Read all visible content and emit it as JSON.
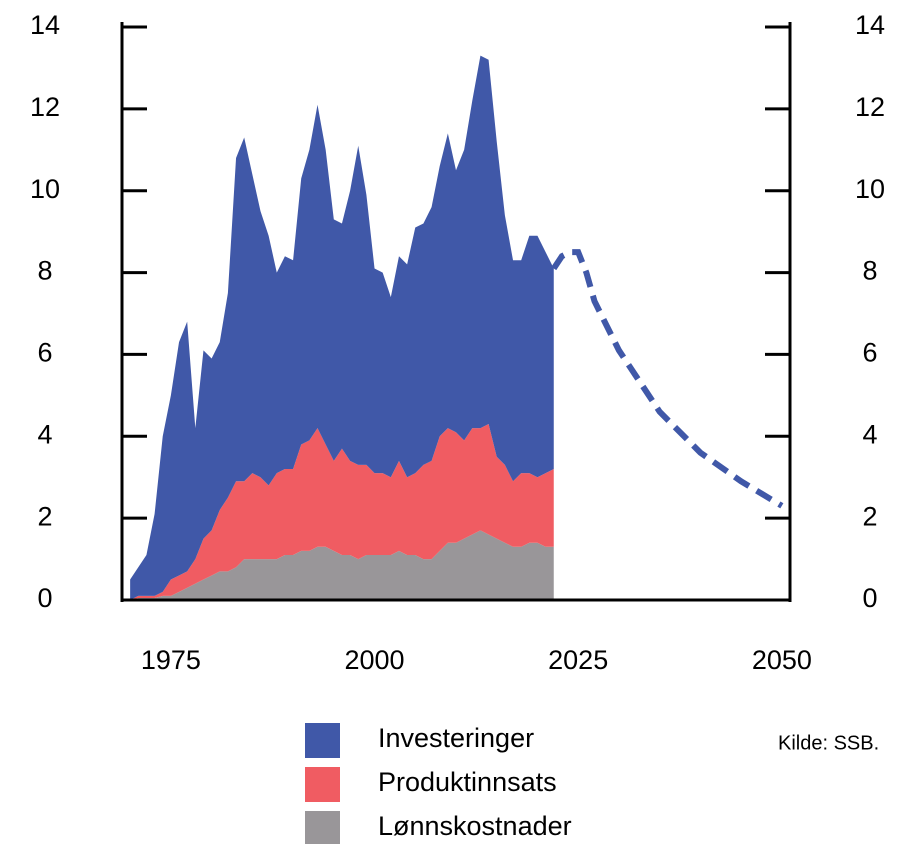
{
  "chart_data": {
    "type": "stacked_area",
    "x": [
      1970,
      1971,
      1972,
      1973,
      1974,
      1975,
      1976,
      1977,
      1978,
      1979,
      1980,
      1981,
      1982,
      1983,
      1984,
      1985,
      1986,
      1987,
      1988,
      1989,
      1990,
      1991,
      1992,
      1993,
      1994,
      1995,
      1996,
      1997,
      1998,
      1999,
      2000,
      2001,
      2002,
      2003,
      2004,
      2005,
      2006,
      2007,
      2008,
      2009,
      2010,
      2011,
      2012,
      2013,
      2014,
      2015,
      2016,
      2017,
      2018,
      2019,
      2020,
      2021,
      2022
    ],
    "series": [
      {
        "name": "Lønnskostnader",
        "color": "#999699",
        "values": [
          0,
          0.05,
          0.05,
          0.05,
          0.1,
          0.1,
          0.2,
          0.3,
          0.4,
          0.5,
          0.6,
          0.7,
          0.7,
          0.8,
          1.0,
          1.0,
          1.0,
          1.0,
          1.0,
          1.1,
          1.1,
          1.2,
          1.2,
          1.3,
          1.3,
          1.2,
          1.1,
          1.1,
          1.0,
          1.1,
          1.1,
          1.1,
          1.1,
          1.2,
          1.1,
          1.1,
          1.0,
          1.0,
          1.2,
          1.4,
          1.4,
          1.5,
          1.6,
          1.7,
          1.6,
          1.5,
          1.4,
          1.3,
          1.3,
          1.4,
          1.4,
          1.3,
          1.3
        ]
      },
      {
        "name": "Produktinnsats",
        "color": "#f05c62",
        "values": [
          0,
          0.05,
          0.05,
          0.05,
          0.1,
          0.4,
          0.4,
          0.4,
          0.6,
          1.0,
          1.1,
          1.5,
          1.8,
          2.1,
          1.9,
          2.1,
          2.0,
          1.8,
          2.1,
          2.1,
          2.1,
          2.6,
          2.7,
          2.9,
          2.5,
          2.2,
          2.6,
          2.3,
          2.3,
          2.2,
          2.0,
          2.0,
          1.9,
          2.2,
          1.9,
          2.0,
          2.3,
          2.4,
          2.8,
          2.8,
          2.7,
          2.4,
          2.6,
          2.5,
          2.7,
          2.0,
          1.9,
          1.6,
          1.8,
          1.7,
          1.6,
          1.8,
          1.9
        ]
      },
      {
        "name": "Investeringer",
        "color": "#4058a8",
        "values": [
          0.5,
          0.7,
          1.0,
          2.0,
          3.8,
          4.5,
          5.7,
          6.1,
          3.2,
          4.6,
          4.2,
          4.1,
          5.0,
          7.9,
          8.4,
          7.3,
          6.5,
          6.1,
          4.9,
          5.2,
          5.1,
          6.5,
          7.1,
          7.9,
          7.2,
          5.9,
          5.5,
          6.6,
          7.8,
          6.6,
          5.0,
          4.9,
          4.4,
          5.0,
          5.2,
          6.0,
          5.9,
          6.2,
          6.6,
          7.2,
          6.4,
          7.1,
          8.0,
          9.1,
          8.9,
          7.7,
          6.1,
          5.4,
          5.2,
          5.8,
          5.9,
          5.4,
          4.9
        ]
      }
    ],
    "projection": {
      "color": "#4058a8",
      "line_style": "dashed",
      "x": [
        2022,
        2023,
        2024,
        2025,
        2026,
        2027,
        2028,
        2030,
        2035,
        2040,
        2045,
        2050
      ],
      "values": [
        8.1,
        8.4,
        8.5,
        8.5,
        8.0,
        7.3,
        6.9,
        6.1,
        4.6,
        3.6,
        2.9,
        2.3
      ]
    },
    "xlim": [
      1969,
      2051
    ],
    "xticks": [
      1975,
      2000,
      2025,
      2050
    ],
    "ylim": [
      0,
      14
    ],
    "yticks": [
      0,
      2,
      4,
      6,
      8,
      10,
      12,
      14
    ],
    "y2lim": [
      0,
      14
    ],
    "y2ticks": [
      0,
      2,
      4,
      6,
      8,
      10,
      12,
      14
    ],
    "legend_position": "bottom",
    "source": "Kilde: SSB."
  }
}
